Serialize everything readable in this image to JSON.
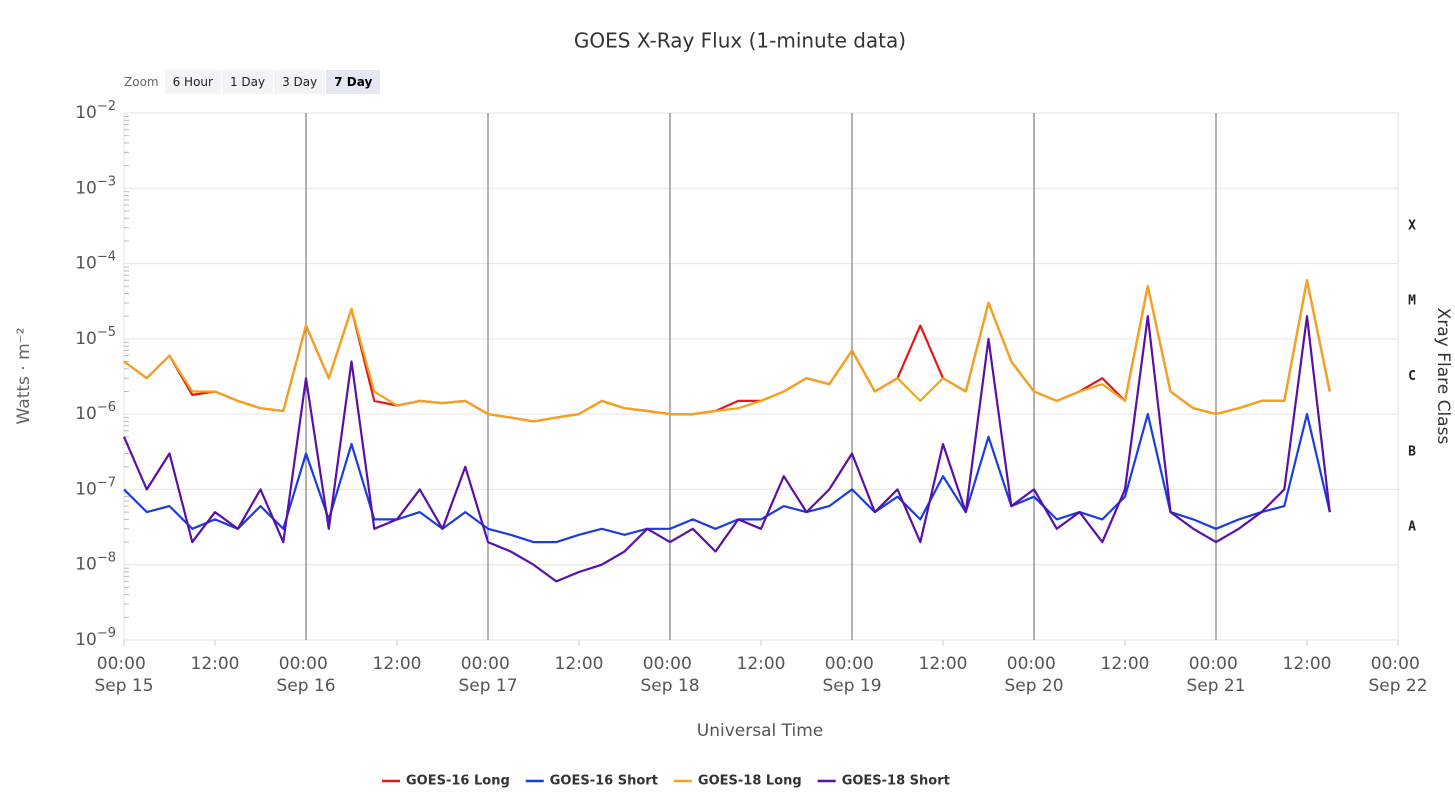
{
  "chart_data": {
    "type": "line",
    "title": "GOES X-Ray Flux (1-minute data)",
    "x_label": "Universal Time",
    "y_label": "Watts · m⁻²",
    "y2_label": "Xray Flare Class",
    "log_y": true,
    "grid": true,
    "legend": "bottom",
    "zoom": {
      "label": "Zoom",
      "buttons": [
        "6 Hour",
        "1 Day",
        "3 Day",
        "7 Day"
      ],
      "selected_index": 3
    },
    "flare_classes": [
      "X",
      "M",
      "C",
      "B",
      "A"
    ],
    "flare_class_lower_bounds": [
      0.0001,
      1e-05,
      1e-06,
      1e-07,
      1e-08
    ],
    "xlim": [
      "Sep 15 00:00",
      "Sep 22 00:00"
    ],
    "xticks": [
      {
        "value": "Sep 15 00:00",
        "label": "00:00 Sep 15"
      },
      {
        "value": "Sep 15 12:00",
        "label": "12:00"
      },
      {
        "value": "Sep 16 00:00",
        "label": "00:00 Sep 16"
      },
      {
        "value": "Sep 16 12:00",
        "label": "12:00"
      },
      {
        "value": "Sep 17 00:00",
        "label": "00:00 Sep 17"
      },
      {
        "value": "Sep 17 12:00",
        "label": "12:00"
      },
      {
        "value": "Sep 18 00:00",
        "label": "00:00 Sep 18"
      },
      {
        "value": "Sep 18 12:00",
        "label": "12:00"
      },
      {
        "value": "Sep 19 00:00",
        "label": "00:00 Sep 19"
      },
      {
        "value": "Sep 19 12:00",
        "label": "12:00"
      },
      {
        "value": "Sep 20 00:00",
        "label": "00:00 Sep 20"
      },
      {
        "value": "Sep 20 12:00",
        "label": "12:00"
      },
      {
        "value": "Sep 21 00:00",
        "label": "00:00 Sep 21"
      },
      {
        "value": "Sep 21 12:00",
        "label": "12:00"
      },
      {
        "value": "Sep 22 00:00",
        "label": "00:00 Sep 22"
      }
    ],
    "ylim": [
      1e-09,
      0.01
    ],
    "yticks": [
      {
        "value": 0.01,
        "label": "10−2"
      },
      {
        "value": 0.001,
        "label": "10−3"
      },
      {
        "value": 0.0001,
        "label": "10−4"
      },
      {
        "value": 1e-05,
        "label": "10−5"
      },
      {
        "value": 1e-06,
        "label": "10−6"
      },
      {
        "value": 1e-07,
        "label": "10−7"
      },
      {
        "value": 1e-08,
        "label": "10−8"
      },
      {
        "value": 1e-09,
        "label": "10−9"
      }
    ],
    "x": [
      "Sep 15 00:00",
      "Sep 15 03:00",
      "Sep 15 06:00",
      "Sep 15 09:00",
      "Sep 15 12:00",
      "Sep 15 15:00",
      "Sep 15 18:00",
      "Sep 15 21:00",
      "Sep 16 00:00",
      "Sep 16 03:00",
      "Sep 16 06:00",
      "Sep 16 09:00",
      "Sep 16 12:00",
      "Sep 16 15:00",
      "Sep 16 18:00",
      "Sep 16 21:00",
      "Sep 17 00:00",
      "Sep 17 03:00",
      "Sep 17 06:00",
      "Sep 17 09:00",
      "Sep 17 12:00",
      "Sep 17 15:00",
      "Sep 17 18:00",
      "Sep 17 21:00",
      "Sep 18 00:00",
      "Sep 18 03:00",
      "Sep 18 06:00",
      "Sep 18 09:00",
      "Sep 18 12:00",
      "Sep 18 15:00",
      "Sep 18 18:00",
      "Sep 18 21:00",
      "Sep 19 00:00",
      "Sep 19 03:00",
      "Sep 19 06:00",
      "Sep 19 09:00",
      "Sep 19 12:00",
      "Sep 19 15:00",
      "Sep 19 18:00",
      "Sep 19 21:00",
      "Sep 20 00:00",
      "Sep 20 03:00",
      "Sep 20 06:00",
      "Sep 20 09:00",
      "Sep 20 12:00",
      "Sep 20 15:00",
      "Sep 20 18:00",
      "Sep 20 21:00",
      "Sep 21 00:00",
      "Sep 21 03:00",
      "Sep 21 06:00",
      "Sep 21 09:00",
      "Sep 21 12:00",
      "Sep 21 15:00"
    ],
    "series": [
      {
        "name": "GOES-16 Long",
        "color": "#e0191c",
        "values": [
          5e-06,
          3e-06,
          6e-06,
          1.8e-06,
          2e-06,
          1.5e-06,
          1.2e-06,
          1.1e-06,
          1.5e-05,
          3e-06,
          2.5e-05,
          1.5e-06,
          1.3e-06,
          1.5e-06,
          1.4e-06,
          1.5e-06,
          1e-06,
          9e-07,
          8e-07,
          9e-07,
          1e-06,
          1.5e-06,
          1.2e-06,
          1.1e-06,
          1e-06,
          1e-06,
          1.1e-06,
          1.5e-06,
          1.5e-06,
          2e-06,
          3e-06,
          2.5e-06,
          7e-06,
          2e-06,
          3e-06,
          1.5e-05,
          3e-06,
          2e-06,
          3e-05,
          5e-06,
          2e-06,
          1.5e-06,
          2e-06,
          3e-06,
          1.5e-06,
          5e-05,
          2e-06,
          1.2e-06,
          1e-06,
          1.2e-06,
          1.5e-06,
          1.5e-06,
          6e-05,
          2e-06
        ]
      },
      {
        "name": "GOES-16 Short",
        "color": "#1a3de0",
        "values": [
          1e-07,
          5e-08,
          6e-08,
          3e-08,
          4e-08,
          3e-08,
          6e-08,
          3e-08,
          3e-07,
          4e-08,
          4e-07,
          4e-08,
          4e-08,
          5e-08,
          3e-08,
          5e-08,
          3e-08,
          2.5e-08,
          2e-08,
          2e-08,
          2.5e-08,
          3e-08,
          2.5e-08,
          3e-08,
          3e-08,
          4e-08,
          3e-08,
          4e-08,
          4e-08,
          6e-08,
          5e-08,
          6e-08,
          1e-07,
          5e-08,
          8e-08,
          4e-08,
          1.5e-07,
          5e-08,
          5e-07,
          6e-08,
          8e-08,
          4e-08,
          5e-08,
          4e-08,
          8e-08,
          1e-06,
          5e-08,
          4e-08,
          3e-08,
          4e-08,
          5e-08,
          6e-08,
          1e-06,
          5e-08
        ]
      },
      {
        "name": "GOES-18 Long",
        "color": "#f5a31a",
        "values": [
          5e-06,
          3e-06,
          6e-06,
          2e-06,
          2e-06,
          1.5e-06,
          1.2e-06,
          1.1e-06,
          1.5e-05,
          3e-06,
          2.5e-05,
          2e-06,
          1.3e-06,
          1.5e-06,
          1.4e-06,
          1.5e-06,
          1e-06,
          9e-07,
          8e-07,
          9e-07,
          1e-06,
          1.5e-06,
          1.2e-06,
          1.1e-06,
          1e-06,
          1e-06,
          1.1e-06,
          1.2e-06,
          1.5e-06,
          2e-06,
          3e-06,
          2.5e-06,
          7e-06,
          2e-06,
          3e-06,
          1.5e-06,
          3e-06,
          2e-06,
          3e-05,
          5e-06,
          2e-06,
          1.5e-06,
          2e-06,
          2.5e-06,
          1.5e-06,
          5e-05,
          2e-06,
          1.2e-06,
          1e-06,
          1.2e-06,
          1.5e-06,
          1.5e-06,
          6e-05,
          2e-06
        ]
      },
      {
        "name": "GOES-18 Short",
        "color": "#5a0fa6",
        "values": [
          5e-07,
          1e-07,
          3e-07,
          2e-08,
          5e-08,
          3e-08,
          1e-07,
          2e-08,
          3e-06,
          3e-08,
          5e-06,
          3e-08,
          4e-08,
          1e-07,
          3e-08,
          2e-07,
          2e-08,
          1.5e-08,
          1e-08,
          6e-09,
          8e-09,
          1e-08,
          1.5e-08,
          3e-08,
          2e-08,
          3e-08,
          1.5e-08,
          4e-08,
          3e-08,
          1.5e-07,
          5e-08,
          1e-07,
          3e-07,
          5e-08,
          1e-07,
          2e-08,
          4e-07,
          5e-08,
          1e-05,
          6e-08,
          1e-07,
          3e-08,
          5e-08,
          2e-08,
          1e-07,
          2e-05,
          5e-08,
          3e-08,
          2e-08,
          3e-08,
          5e-08,
          1e-07,
          2e-05,
          5e-08
        ]
      }
    ]
  }
}
